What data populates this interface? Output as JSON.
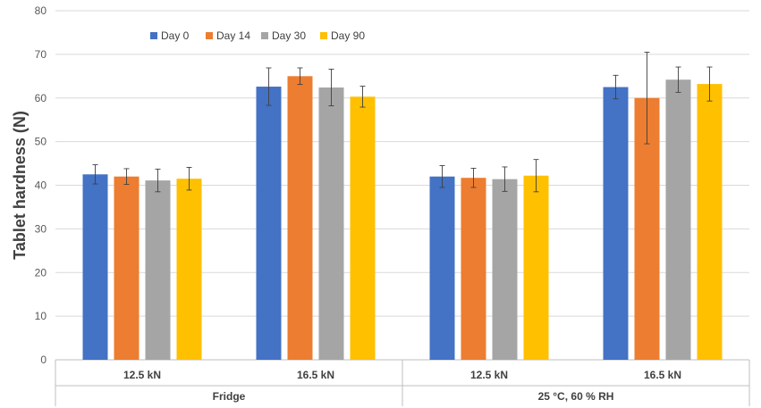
{
  "chart_data": {
    "type": "bar",
    "title": "",
    "xlabel": "",
    "ylabel": "Tablet hardness (N)",
    "ylim": [
      0,
      80
    ],
    "y_ticks": [
      0,
      10,
      20,
      30,
      40,
      50,
      60,
      70,
      80
    ],
    "grid": true,
    "legend_position": "top-center",
    "groups": [
      "Fridge",
      "25 °C, 60 % RH"
    ],
    "categories": [
      "12.5 kN",
      "16.5 kN",
      "12.5 kN",
      "16.5 kN"
    ],
    "series": [
      {
        "name": "Day 0",
        "color": "#4472C4",
        "values": [
          42.5,
          62.6,
          42.0,
          62.5
        ],
        "errors": [
          2.2,
          4.3,
          2.5,
          2.7
        ]
      },
      {
        "name": "Day 14",
        "color": "#ED7D31",
        "values": [
          42.0,
          65.0,
          41.7,
          60.0
        ],
        "errors": [
          1.8,
          1.9,
          2.2,
          10.5
        ]
      },
      {
        "name": "Day 30",
        "color": "#A5A5A5",
        "values": [
          41.1,
          62.4,
          41.4,
          64.2
        ],
        "errors": [
          2.6,
          4.2,
          2.8,
          2.9
        ]
      },
      {
        "name": "Day 90",
        "color": "#FFC000",
        "values": [
          41.5,
          60.3,
          42.2,
          63.2
        ],
        "errors": [
          2.6,
          2.4,
          3.7,
          3.9
        ]
      }
    ]
  }
}
